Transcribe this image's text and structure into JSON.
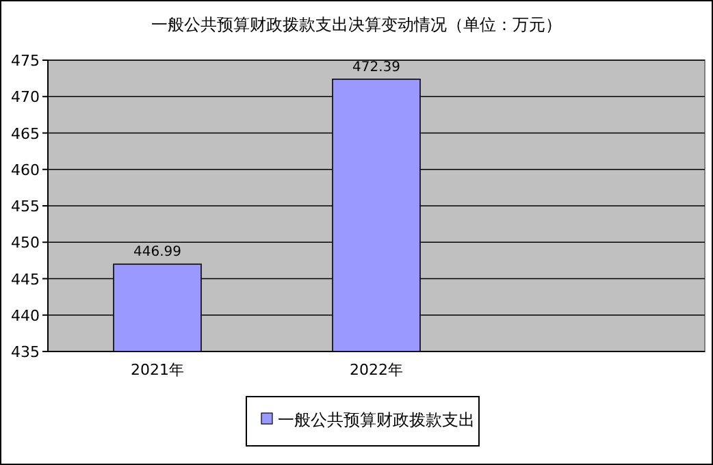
{
  "chart_data": {
    "type": "bar",
    "title": "一般公共预算财政拨款支出决算变动情况（单位：万元）",
    "categories": [
      "2021年",
      "2022年",
      null
    ],
    "series": [
      {
        "name": "一般公共预算财政拨款支出",
        "color": "#9999ff",
        "values": [
          446.99,
          472.39,
          null
        ]
      }
    ],
    "ylim": [
      435,
      475
    ],
    "yticks": [
      435,
      440,
      445,
      450,
      455,
      460,
      465,
      470,
      475
    ],
    "grid": "y",
    "legend": "bottom",
    "data_labels": true
  }
}
